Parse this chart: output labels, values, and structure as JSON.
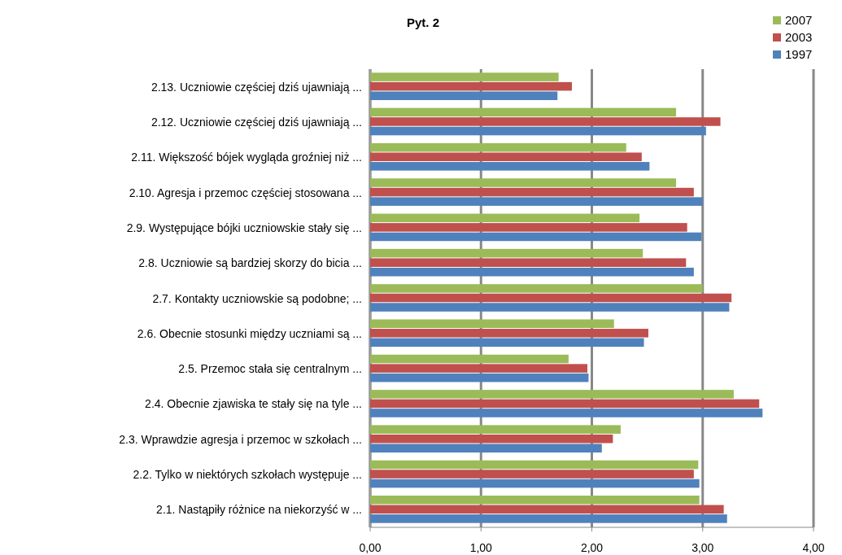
{
  "chart_data": {
    "type": "bar",
    "orientation": "horizontal",
    "title": "Pyt. 2",
    "categories": [
      "2.13. Uczniowie częściej dziś ujawniają ...",
      "2.12. Uczniowie częściej dziś ujawniają ...",
      "2.11. Większość bójek wygląda groźniej niż ...",
      "2.10. Agresja i przemoc częściej stosowana ...",
      "2.9. Występujące bójki uczniowskie stały się ...",
      "2.8. Uczniowie są bardziej skorzy do bicia ...",
      "2.7. Kontakty uczniowskie są podobne; ...",
      "2.6. Obecnie stosunki między uczniami są ...",
      "2.5. Przemoc stała się centralnym ...",
      "2.4. Obecnie zjawiska te stały się na tyle ...",
      "2.3. Wprawdzie agresja i przemoc w szkołach ...",
      "2.2. Tylko w niektórych szkołach występuje ...",
      "2.1. Nastąpiły różnice na niekorzyść w ..."
    ],
    "series": [
      {
        "name": "2007",
        "color": "#9bbb59",
        "values": [
          1.7,
          2.76,
          2.31,
          2.76,
          2.43,
          2.46,
          3.0,
          2.2,
          1.79,
          3.28,
          2.26,
          2.96,
          2.97
        ]
      },
      {
        "name": "2003",
        "color": "#c0504d",
        "values": [
          1.82,
          3.16,
          2.45,
          2.92,
          2.86,
          2.85,
          3.26,
          2.51,
          1.96,
          3.51,
          2.19,
          2.92,
          3.19
        ]
      },
      {
        "name": "1997",
        "color": "#4f81bd",
        "values": [
          1.69,
          3.03,
          2.52,
          3.0,
          2.99,
          2.92,
          3.24,
          2.47,
          1.97,
          3.54,
          2.09,
          2.97,
          3.22
        ]
      }
    ],
    "xlim": [
      0,
      4
    ],
    "xticks": [
      {
        "value": 0,
        "label": "0,00"
      },
      {
        "value": 1,
        "label": "1,00"
      },
      {
        "value": 2,
        "label": "2,00"
      },
      {
        "value": 3,
        "label": "3,00"
      },
      {
        "value": 4,
        "label": "4,00"
      }
    ],
    "grid": "x",
    "legend": "top right"
  }
}
